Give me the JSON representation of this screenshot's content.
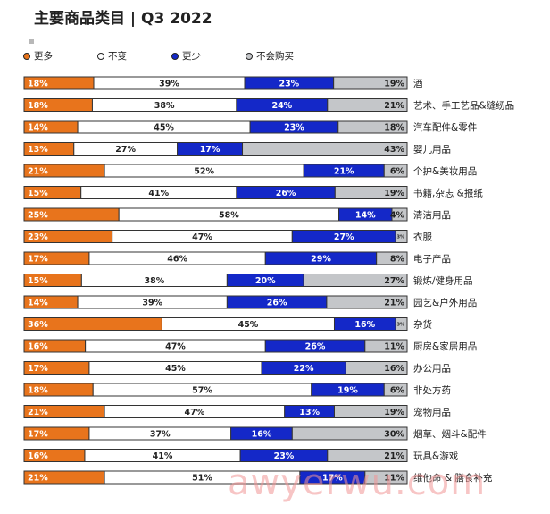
{
  "title": "主要商品类目 | Q3 2022",
  "watermark": "awyerwu.com",
  "colors": {
    "more": "#e8741c",
    "same": "#ffffff",
    "less": "#1428c8",
    "never": "#c4c6c9",
    "border": "#333333"
  },
  "chart_data": {
    "type": "bar",
    "stacked": true,
    "orientation": "horizontal",
    "xlim": [
      0,
      100
    ],
    "legend_position": "top-left",
    "series": [
      {
        "name": "更多",
        "key": "more"
      },
      {
        "name": "不变",
        "key": "same"
      },
      {
        "name": "更少",
        "key": "less"
      },
      {
        "name": "不会购买",
        "key": "never"
      }
    ],
    "rows": [
      {
        "category": "酒",
        "values": [
          18,
          39,
          23,
          19
        ],
        "labels": [
          "18%",
          "39%",
          "23%",
          "19%"
        ]
      },
      {
        "category": "艺术、手工艺品&缝纫品",
        "values": [
          18,
          38,
          24,
          21
        ],
        "labels": [
          "18%",
          "38%",
          "24%",
          "21%"
        ]
      },
      {
        "category": "汽车配件&零件",
        "values": [
          14,
          45,
          23,
          18
        ],
        "labels": [
          "14%",
          "45%",
          "23%",
          "18%"
        ]
      },
      {
        "category": "婴儿用品",
        "values": [
          13,
          27,
          17,
          43
        ],
        "labels": [
          "13%",
          "27%",
          "17%",
          "43%"
        ]
      },
      {
        "category": "个护&美妆用品",
        "values": [
          21,
          52,
          21,
          6
        ],
        "labels": [
          "21%",
          "52%",
          "21%",
          "6%"
        ]
      },
      {
        "category": "书籍,杂志 &报纸",
        "values": [
          15,
          41,
          26,
          19
        ],
        "labels": [
          "15%",
          "41%",
          "26%",
          "19%"
        ]
      },
      {
        "category": "清洁用品",
        "values": [
          25,
          58,
          14,
          4
        ],
        "labels": [
          "25%",
          "58%",
          "14%",
          "4%"
        ]
      },
      {
        "category": "衣服",
        "values": [
          23,
          47,
          27,
          3
        ],
        "labels": [
          "23%",
          "47%",
          "27%",
          "3%"
        ]
      },
      {
        "category": "电子产品",
        "values": [
          17,
          46,
          29,
          8
        ],
        "labels": [
          "17%",
          "46%",
          "29%",
          "8%"
        ]
      },
      {
        "category": "锻炼/健身用品",
        "values": [
          15,
          38,
          20,
          27
        ],
        "labels": [
          "15%",
          "38%",
          "20%",
          "27%"
        ]
      },
      {
        "category": "园艺&户外用品",
        "values": [
          14,
          39,
          26,
          21
        ],
        "labels": [
          "14%",
          "39%",
          "26%",
          "21%"
        ]
      },
      {
        "category": "杂货",
        "values": [
          36,
          45,
          16,
          3
        ],
        "labels": [
          "36%",
          "45%",
          "16%",
          "3%"
        ]
      },
      {
        "category": "厨房&家居用品",
        "values": [
          16,
          47,
          26,
          11
        ],
        "labels": [
          "16%",
          "47%",
          "26%",
          "11%"
        ]
      },
      {
        "category": "办公用品",
        "values": [
          17,
          45,
          22,
          16
        ],
        "labels": [
          "17%",
          "45%",
          "22%",
          "16%"
        ]
      },
      {
        "category": "非处方药",
        "values": [
          18,
          57,
          19,
          6
        ],
        "labels": [
          "18%",
          "57%",
          "19%",
          "6%"
        ]
      },
      {
        "category": "宠物用品",
        "values": [
          21,
          47,
          13,
          19
        ],
        "labels": [
          "21%",
          "47%",
          "13%",
          "19%"
        ]
      },
      {
        "category": "烟草、烟斗&配件",
        "values": [
          17,
          37,
          16,
          30
        ],
        "labels": [
          "17%",
          "37%",
          "16%",
          "30%"
        ]
      },
      {
        "category": "玩具&游戏",
        "values": [
          16,
          41,
          23,
          21
        ],
        "labels": [
          "16%",
          "41%",
          "23%",
          "21%"
        ]
      },
      {
        "category": "维他命 & 膳食补充",
        "values": [
          21,
          51,
          17,
          11
        ],
        "labels": [
          "21%",
          "51%",
          "17%",
          "11%"
        ]
      }
    ]
  }
}
